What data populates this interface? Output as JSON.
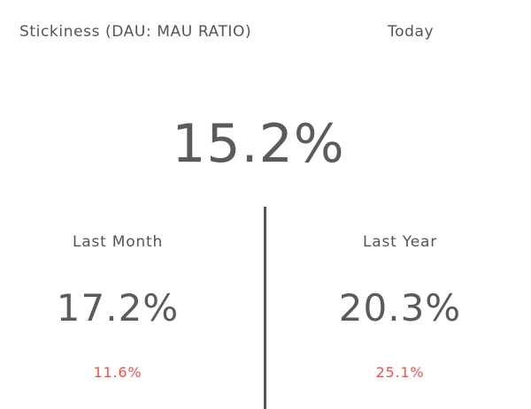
{
  "header": {
    "title": "Stickiness (DAU: MAU RATIO)",
    "period": "Today"
  },
  "current": {
    "value": "15.2%"
  },
  "comparisons": [
    {
      "label": "Last Month",
      "value": "17.2%",
      "change": "11.6%"
    },
    {
      "label": "Last Year",
      "value": "20.3%",
      "change": "25.1%"
    }
  ],
  "colors": {
    "text": "#555555",
    "change": "#f0504a",
    "divider": "#555555"
  }
}
